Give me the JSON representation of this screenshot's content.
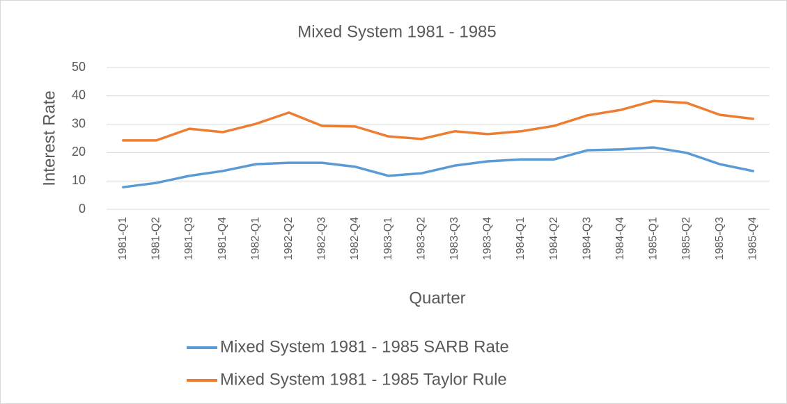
{
  "chart_data": {
    "type": "line",
    "title": "Mixed System 1981 - 1985",
    "x_label": "Quarter",
    "y_label": "Interest Rate",
    "categories": [
      "1981-Q1",
      "1981-Q2",
      "1981-Q3",
      "1981-Q4",
      "1982-Q1",
      "1982-Q2",
      "1982-Q3",
      "1982-Q4",
      "1983-Q1",
      "1983-Q2",
      "1983-Q3",
      "1983-Q4",
      "1984-Q1",
      "1984-Q2",
      "1984-Q3",
      "1984-Q4",
      "1985-Q1",
      "1985-Q2",
      "1985-Q3",
      "1985-Q4"
    ],
    "series": [
      {
        "name": "Mixed System 1981 - 1985 SARB Rate",
        "color": "#5b9bd5",
        "values": [
          7.8,
          9.3,
          11.8,
          13.5,
          15.9,
          16.4,
          16.4,
          15.0,
          11.8,
          12.7,
          15.4,
          16.9,
          17.6,
          17.6,
          20.8,
          21.1,
          21.8,
          19.9,
          15.9,
          13.5
        ]
      },
      {
        "name": "Mixed System 1981 - 1985 Taylor Rule",
        "color": "#ed7d31",
        "values": [
          24.3,
          24.3,
          28.4,
          27.2,
          30.1,
          34.1,
          29.4,
          29.2,
          25.7,
          24.8,
          27.5,
          26.5,
          27.5,
          29.4,
          33.1,
          35.0,
          38.2,
          37.5,
          33.3,
          31.9
        ]
      }
    ],
    "ylim": [
      0,
      50
    ],
    "yticks": [
      0,
      10,
      20,
      30,
      40,
      50
    ],
    "grid": true,
    "legend": "bottom"
  }
}
